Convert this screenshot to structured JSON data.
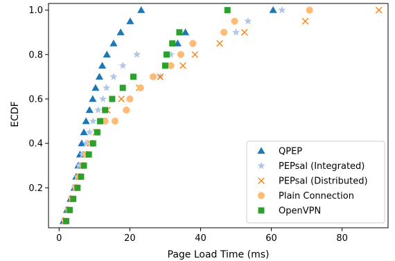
{
  "chart_data": {
    "type": "scatter",
    "xlabel": "Page Load Time (ms)",
    "ylabel": "ECDF",
    "xlim": [
      -3,
      93
    ],
    "ylim": [
      0.02,
      1.03
    ],
    "xticks": [
      0,
      20,
      40,
      60,
      80
    ],
    "yticks": [
      0.2,
      0.4,
      0.6,
      0.8,
      1.0
    ],
    "xtick_labels": [
      "0",
      "20",
      "40",
      "60",
      "80"
    ],
    "ytick_labels": [
      "0.2",
      "0.4",
      "0.6",
      "0.8",
      "1.0"
    ],
    "grid": false,
    "legend_position": "lower-right",
    "series": [
      {
        "name": "QPEP",
        "marker": "triangle",
        "color": "#1f77b4",
        "x": [
          1.2,
          2.2,
          3.2,
          4.3,
          4.8,
          5.4,
          5.9,
          6.4,
          7.0,
          7.6,
          8.6,
          9.5,
          10.3,
          11.4,
          12.2,
          13.5,
          15.4,
          17.4,
          20.1,
          23.2,
          33.5,
          35.7,
          60.5
        ],
        "y": [
          0.05,
          0.1,
          0.15,
          0.2,
          0.25,
          0.3,
          0.35,
          0.4,
          0.45,
          0.5,
          0.55,
          0.6,
          0.65,
          0.7,
          0.75,
          0.8,
          0.85,
          0.9,
          0.95,
          1.0,
          0.85,
          0.9,
          1.0
        ]
      },
      {
        "name": "PEPsal (Integrated)",
        "marker": "star",
        "color": "#aec7e8",
        "x": [
          1.4,
          2.4,
          3.4,
          4.4,
          5.0,
          5.6,
          6.6,
          7.6,
          8.6,
          9.6,
          11.0,
          12.4,
          13.4,
          15.4,
          18.0,
          22.0,
          28.6,
          31.6,
          50.0,
          53.4,
          63.0
        ],
        "y": [
          0.05,
          0.1,
          0.15,
          0.2,
          0.25,
          0.3,
          0.35,
          0.4,
          0.45,
          0.5,
          0.55,
          0.6,
          0.65,
          0.7,
          0.75,
          0.8,
          0.7,
          0.8,
          0.9,
          0.95,
          1.0
        ]
      },
      {
        "name": "PEPsal (Distributed)",
        "marker": "x",
        "color": "#ff7f0e",
        "x": [
          1.6,
          2.6,
          3.6,
          4.6,
          5.6,
          6.6,
          7.6,
          8.8,
          10.4,
          12.6,
          13.6,
          17.6,
          22.6,
          28.6,
          35.0,
          38.4,
          45.4,
          52.4,
          69.6,
          90.4
        ],
        "y": [
          0.05,
          0.1,
          0.15,
          0.2,
          0.25,
          0.3,
          0.35,
          0.4,
          0.45,
          0.5,
          0.55,
          0.6,
          0.65,
          0.7,
          0.75,
          0.8,
          0.85,
          0.9,
          0.95,
          1.0
        ]
      },
      {
        "name": "Plain Connection",
        "marker": "circle",
        "color": "#ffbb78",
        "x": [
          1.8,
          2.8,
          3.8,
          4.8,
          5.8,
          6.8,
          7.8,
          9.4,
          10.8,
          13.0,
          15.8,
          19.0,
          20.0,
          23.0,
          26.6,
          31.6,
          34.4,
          37.8,
          46.6,
          49.6,
          70.8
        ],
        "y": [
          0.05,
          0.1,
          0.15,
          0.2,
          0.25,
          0.3,
          0.35,
          0.4,
          0.45,
          0.5,
          0.5,
          0.55,
          0.6,
          0.65,
          0.7,
          0.75,
          0.8,
          0.85,
          0.9,
          0.95,
          1.0
        ]
      },
      {
        "name": "OpenVPN",
        "marker": "square",
        "color": "#2ca02c",
        "x": [
          2.0,
          3.0,
          4.0,
          5.2,
          6.2,
          7.0,
          8.4,
          9.6,
          10.8,
          11.6,
          13.0,
          15.0,
          18.0,
          21.0,
          30.0,
          30.4,
          32.0,
          34.0,
          47.6
        ],
        "y": [
          0.05,
          0.1,
          0.15,
          0.2,
          0.25,
          0.3,
          0.35,
          0.4,
          0.45,
          0.5,
          0.55,
          0.6,
          0.65,
          0.7,
          0.75,
          0.8,
          0.85,
          0.9,
          1.0
        ]
      }
    ]
  }
}
